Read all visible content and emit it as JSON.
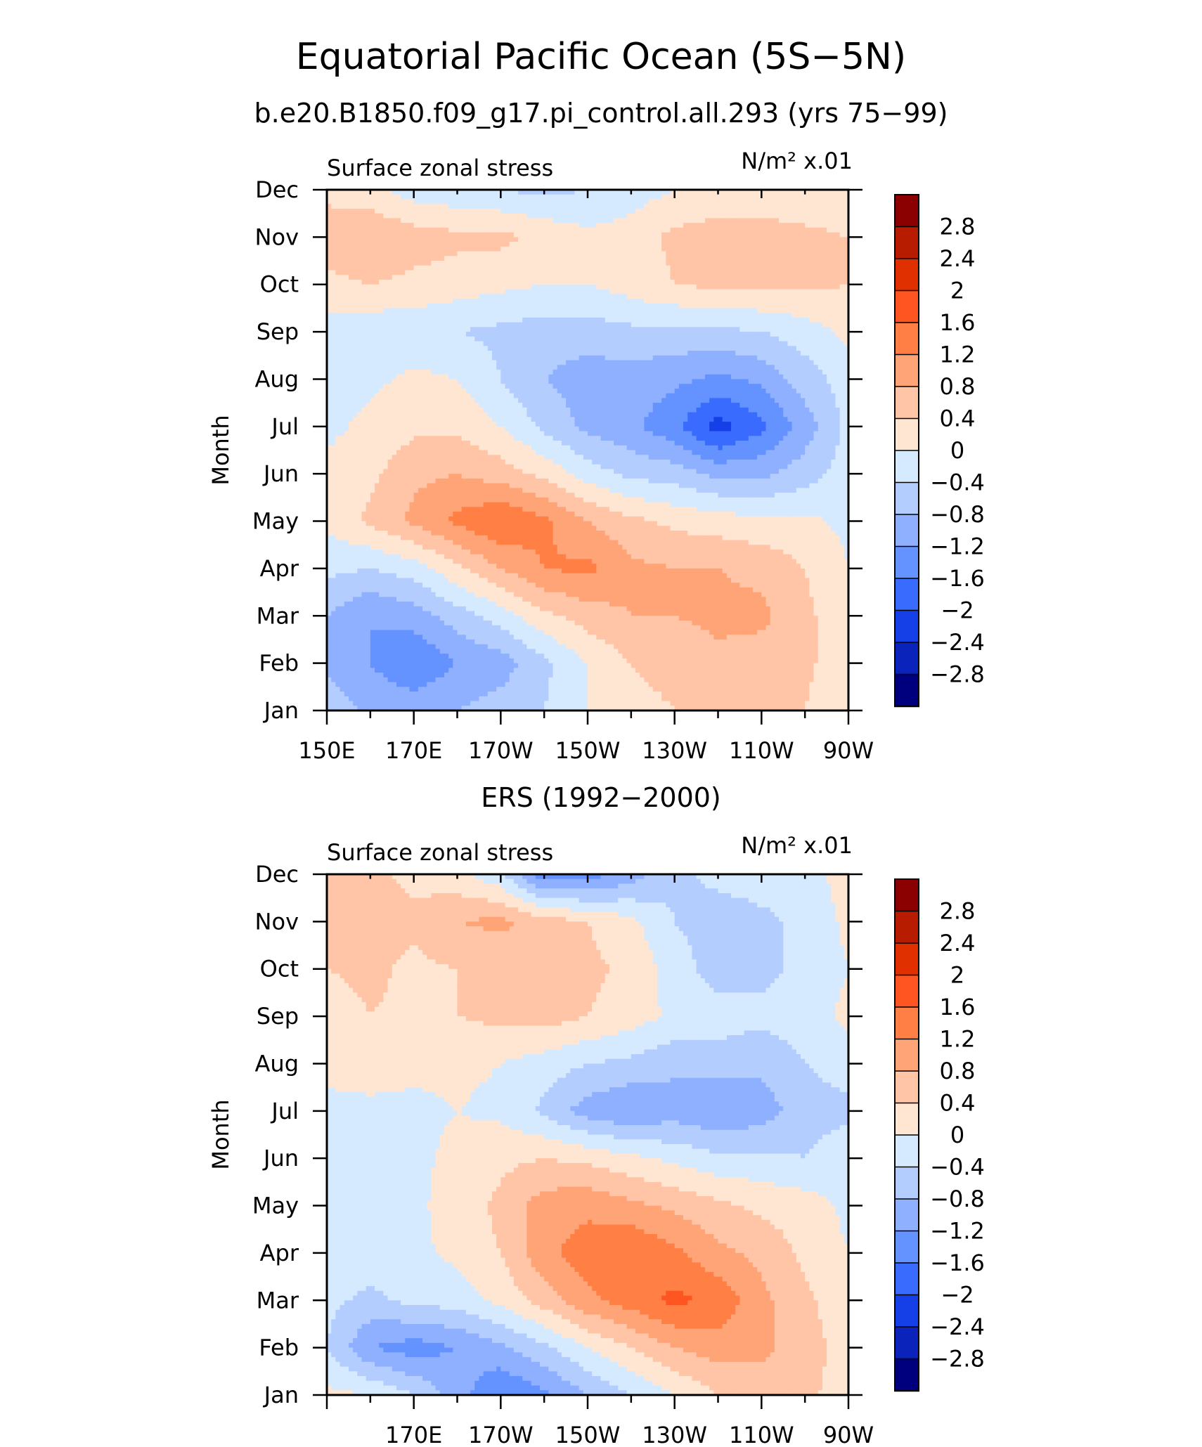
{
  "title": "Equatorial Pacific Ocean (5S−5N)",
  "subtitle": "b.e20.B1850.f09_g17.pi_control.all.293 (yrs 75−99)",
  "colorbar": {
    "labels": [
      "2.8",
      "2.4",
      "2",
      "1.6",
      "1.2",
      "0.8",
      "0.4",
      "0",
      "−0.4",
      "−0.8",
      "−1.2",
      "−1.6",
      "−2",
      "−2.4",
      "−2.8"
    ],
    "colors": [
      "#8b0000",
      "#b81c00",
      "#e03000",
      "#ff5520",
      "#ff7f45",
      "#ffa477",
      "#ffc5a6",
      "#ffe6d3",
      "#d6eaff",
      "#b4cdff",
      "#8fb0ff",
      "#6493ff",
      "#3a6bff",
      "#1540e8",
      "#0a24bb",
      "#00007f"
    ]
  },
  "chart_data": [
    {
      "type": "heatmap",
      "panel_title": "",
      "left_label": "Surface zonal stress",
      "right_label": "N/m² x.01",
      "ylabel": "Month",
      "x_tick_labels": [
        "150E",
        "170E",
        "170W",
        "150W",
        "130W",
        "110W",
        "90W"
      ],
      "y_tick_labels": [
        "Jan",
        "Feb",
        "Mar",
        "Apr",
        "May",
        "Jun",
        "Jul",
        "Aug",
        "Sep",
        "Oct",
        "Nov",
        "Dec"
      ],
      "x_range_lon": [
        150,
        270
      ],
      "levels": [
        -2.8,
        -2.4,
        -2.0,
        -1.6,
        -1.2,
        -0.8,
        -0.4,
        0,
        0.4,
        0.8,
        1.2,
        1.6,
        2.0,
        2.4,
        2.8
      ],
      "grid_x_lon": [
        150,
        160,
        170,
        180,
        190,
        200,
        210,
        220,
        230,
        240,
        250,
        260,
        270
      ],
      "grid_months": [
        "Jan",
        "Feb",
        "Mar",
        "Apr",
        "May",
        "Jun",
        "Jul",
        "Aug",
        "Sep",
        "Oct",
        "Nov",
        "Dec"
      ],
      "values": [
        [
          -0.5,
          -0.9,
          -0.9,
          -0.8,
          -0.6,
          -0.4,
          0.0,
          0.3,
          0.4,
          0.5,
          0.5,
          0.4,
          0.0
        ],
        [
          -0.9,
          -1.2,
          -1.6,
          -1.2,
          -1.0,
          -0.5,
          0.0,
          0.4,
          0.5,
          0.7,
          0.6,
          0.5,
          0.1
        ],
        [
          -0.8,
          -1.2,
          -1.0,
          -0.6,
          -0.2,
          0.3,
          0.6,
          0.8,
          0.8,
          0.9,
          0.9,
          0.5,
          0.1
        ],
        [
          -0.3,
          -0.4,
          -0.2,
          0.3,
          0.8,
          1.2,
          1.3,
          0.9,
          0.8,
          0.8,
          0.7,
          0.4,
          0.0
        ],
        [
          0.1,
          0.5,
          0.9,
          1.3,
          1.6,
          1.3,
          0.8,
          0.5,
          0.3,
          0.2,
          0.1,
          0.1,
          -0.1
        ],
        [
          0.1,
          0.3,
          0.7,
          0.8,
          0.6,
          0.3,
          -0.2,
          -0.5,
          -0.6,
          -0.9,
          -0.9,
          -0.6,
          -0.2
        ],
        [
          -0.1,
          0.1,
          0.3,
          0.3,
          0.0,
          -0.5,
          -0.9,
          -1.1,
          -1.5,
          -2.2,
          -1.7,
          -1.0,
          -0.3
        ],
        [
          -0.2,
          -0.1,
          0.1,
          0.0,
          -0.4,
          -0.8,
          -1.0,
          -1.0,
          -1.1,
          -1.3,
          -1.1,
          -0.6,
          -0.2
        ],
        [
          -0.2,
          -0.3,
          -0.3,
          -0.4,
          -0.5,
          -0.6,
          -0.6,
          -0.5,
          -0.5,
          -0.5,
          -0.4,
          -0.2,
          0.1
        ],
        [
          0.3,
          0.4,
          0.3,
          0.2,
          0.1,
          0.0,
          0.0,
          0.2,
          0.4,
          0.5,
          0.5,
          0.5,
          0.4
        ],
        [
          0.6,
          0.8,
          0.6,
          0.5,
          0.5,
          0.3,
          0.1,
          0.2,
          0.5,
          0.6,
          0.6,
          0.5,
          0.4
        ],
        [
          0.3,
          0.1,
          -0.2,
          -0.3,
          -0.4,
          -0.5,
          -0.4,
          -0.2,
          0.0,
          0.1,
          0.1,
          0.1,
          0.1
        ]
      ]
    },
    {
      "type": "heatmap",
      "panel_title": "ERS (1992−2000)",
      "left_label": "Surface zonal stress",
      "right_label": "N/m² x.01",
      "ylabel": "Month",
      "x_tick_labels": [
        "170E",
        "170W",
        "150W",
        "130W",
        "110W",
        "90W"
      ],
      "y_tick_labels": [
        "Jan",
        "Feb",
        "Mar",
        "Apr",
        "May",
        "Jun",
        "Jul",
        "Aug",
        "Sep",
        "Oct",
        "Nov",
        "Dec"
      ],
      "x_range_lon": [
        150,
        270
      ],
      "levels": [
        -2.8,
        -2.4,
        -2.0,
        -1.6,
        -1.2,
        -0.8,
        -0.4,
        0,
        0.4,
        0.8,
        1.2,
        1.6,
        2.0,
        2.4,
        2.8
      ],
      "grid_x_lon": [
        150,
        160,
        170,
        180,
        190,
        200,
        210,
        220,
        230,
        240,
        250,
        260,
        270
      ],
      "grid_months": [
        "Jan",
        "Feb",
        "Mar",
        "Apr",
        "May",
        "Jun",
        "Jul",
        "Aug",
        "Sep",
        "Oct",
        "Nov",
        "Dec"
      ],
      "values": [
        [
          0.1,
          0.0,
          -0.4,
          -1.0,
          -1.6,
          -1.3,
          -0.8,
          -0.4,
          0.0,
          0.4,
          0.6,
          0.5,
          0.2
        ],
        [
          -0.4,
          -1.2,
          -1.4,
          -1.2,
          -0.9,
          -0.5,
          0.0,
          0.4,
          0.8,
          1.0,
          0.9,
          0.6,
          0.2
        ],
        [
          -0.3,
          -0.5,
          -0.3,
          -0.2,
          0.1,
          0.6,
          1.1,
          1.4,
          1.7,
          1.5,
          0.9,
          0.5,
          0.1
        ],
        [
          -0.1,
          -0.2,
          -0.1,
          0.1,
          0.4,
          1.1,
          1.4,
          1.6,
          1.3,
          0.9,
          0.7,
          0.3,
          0.0
        ],
        [
          -0.2,
          -0.1,
          -0.1,
          0.2,
          0.5,
          1.0,
          1.1,
          0.9,
          0.7,
          0.5,
          0.3,
          0.2,
          -0.1
        ],
        [
          -0.3,
          -0.2,
          -0.1,
          0.1,
          0.3,
          0.4,
          0.3,
          0.1,
          -0.1,
          -0.3,
          -0.3,
          -0.4,
          -0.1
        ],
        [
          -0.1,
          -0.1,
          -0.1,
          0.0,
          -0.1,
          -0.5,
          -1.0,
          -1.2,
          -1.0,
          -1.2,
          -1.0,
          -0.6,
          -0.5
        ],
        [
          0.1,
          0.2,
          0.1,
          0.1,
          0.0,
          -0.2,
          -0.4,
          -0.5,
          -0.7,
          -0.6,
          -0.7,
          -0.4,
          -0.2
        ],
        [
          0.2,
          0.4,
          0.3,
          0.4,
          0.5,
          0.6,
          0.4,
          0.2,
          -0.1,
          -0.2,
          -0.3,
          -0.2,
          0.1
        ],
        [
          0.4,
          0.5,
          0.3,
          0.4,
          0.5,
          0.6,
          0.5,
          0.3,
          -0.2,
          -0.6,
          -0.5,
          -0.3,
          0.0
        ],
        [
          0.4,
          0.6,
          0.5,
          0.8,
          0.9,
          0.6,
          0.4,
          0.1,
          -0.4,
          -0.6,
          -0.5,
          -0.3,
          0.1
        ],
        [
          0.6,
          0.5,
          0.3,
          0.1,
          -0.3,
          -1.5,
          -1.4,
          -1.0,
          -0.5,
          -0.3,
          -0.2,
          -0.2,
          0.2
        ]
      ]
    }
  ]
}
